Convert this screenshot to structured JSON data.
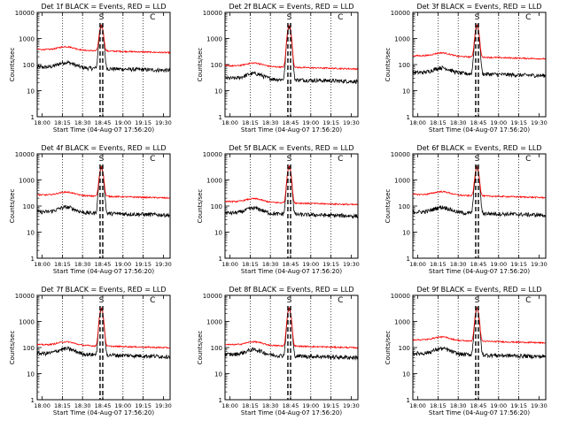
{
  "figure": {
    "xlabel": "Start Time (04-Aug-07 17:56:20)",
    "ylabel": "Counts/sec",
    "x_tick_labels": [
      "18:00",
      "18:15",
      "18:30",
      "18:45",
      "19:00",
      "19:15",
      "19:30"
    ],
    "y_tick_labels": [
      "1",
      "10",
      "100",
      "1000",
      "10000"
    ],
    "marker_labels": [
      "S",
      "C"
    ],
    "colors": {
      "events": "#000000",
      "lld": "#ff0000"
    }
  },
  "chart_data": [
    {
      "type": "line",
      "title": "Det 1f BLACK = Events, RED = LLD",
      "xlim": [
        "17:56:20",
        "19:35:00"
      ],
      "ylim": [
        1,
        10000
      ],
      "yscale": "log",
      "series": [
        {
          "name": "Events",
          "color": "#000000",
          "baseline": 80,
          "peak": 3000
        },
        {
          "name": "LLD",
          "color": "#ff0000",
          "baseline": 380,
          "peak": 3300
        }
      ],
      "vertical_lines": {
        "dotted": [
          "18:15",
          "18:30",
          "19:00",
          "19:15"
        ],
        "dashed": [
          "18:43",
          "18:45"
        ]
      }
    },
    {
      "type": "line",
      "title": "Det 2f BLACK = Events, RED = LLD",
      "xlim": [
        "17:56:20",
        "19:35:00"
      ],
      "ylim": [
        1,
        10000
      ],
      "yscale": "log",
      "series": [
        {
          "name": "Events",
          "color": "#000000",
          "baseline": 30,
          "peak": 3000
        },
        {
          "name": "LLD",
          "color": "#ff0000",
          "baseline": 90,
          "peak": 3300
        }
      ],
      "vertical_lines": {
        "dotted": [
          "18:15",
          "18:30",
          "19:00",
          "19:15"
        ],
        "dashed": [
          "18:43",
          "18:45"
        ]
      }
    },
    {
      "type": "line",
      "title": "Det 3f BLACK = Events, RED = LLD",
      "xlim": [
        "17:56:20",
        "19:35:00"
      ],
      "ylim": [
        1,
        10000
      ],
      "yscale": "log",
      "series": [
        {
          "name": "Events",
          "color": "#000000",
          "baseline": 50,
          "peak": 3000
        },
        {
          "name": "LLD",
          "color": "#ff0000",
          "baseline": 220,
          "peak": 3300
        }
      ],
      "vertical_lines": {
        "dotted": [
          "18:15",
          "18:30",
          "19:00",
          "19:15"
        ],
        "dashed": [
          "18:43",
          "18:45"
        ]
      }
    },
    {
      "type": "line",
      "title": "Det 4f BLACK = Events, RED = LLD",
      "xlim": [
        "17:56:20",
        "19:35:00"
      ],
      "ylim": [
        1,
        10000
      ],
      "yscale": "log",
      "series": [
        {
          "name": "Events",
          "color": "#000000",
          "baseline": 60,
          "peak": 3000
        },
        {
          "name": "LLD",
          "color": "#ff0000",
          "baseline": 270,
          "peak": 3300
        }
      ],
      "vertical_lines": {
        "dotted": [
          "18:15",
          "18:30",
          "19:00",
          "19:15"
        ],
        "dashed": [
          "18:43",
          "18:45"
        ]
      }
    },
    {
      "type": "line",
      "title": "Det 5f BLACK = Events, RED = LLD",
      "xlim": [
        "17:56:20",
        "19:35:00"
      ],
      "ylim": [
        1,
        10000
      ],
      "yscale": "log",
      "series": [
        {
          "name": "Events",
          "color": "#000000",
          "baseline": 55,
          "peak": 3000
        },
        {
          "name": "LLD",
          "color": "#ff0000",
          "baseline": 150,
          "peak": 3300
        }
      ],
      "vertical_lines": {
        "dotted": [
          "18:15",
          "18:30",
          "19:00",
          "19:15"
        ],
        "dashed": [
          "18:43",
          "18:45"
        ]
      }
    },
    {
      "type": "line",
      "title": "Det 6f BLACK = Events, RED = LLD",
      "xlim": [
        "17:56:20",
        "19:35:00"
      ],
      "ylim": [
        1,
        10000
      ],
      "yscale": "log",
      "series": [
        {
          "name": "Events",
          "color": "#000000",
          "baseline": 60,
          "peak": 3000
        },
        {
          "name": "LLD",
          "color": "#ff0000",
          "baseline": 280,
          "peak": 3300
        }
      ],
      "vertical_lines": {
        "dotted": [
          "18:15",
          "18:30",
          "19:00",
          "19:15"
        ],
        "dashed": [
          "18:43",
          "18:45"
        ]
      }
    },
    {
      "type": "line",
      "title": "Det 7f BLACK = Events, RED = LLD",
      "xlim": [
        "17:56:20",
        "19:35:00"
      ],
      "ylim": [
        1,
        10000
      ],
      "yscale": "log",
      "series": [
        {
          "name": "Events",
          "color": "#000000",
          "baseline": 60,
          "peak": 3000
        },
        {
          "name": "LLD",
          "color": "#ff0000",
          "baseline": 130,
          "peak": 3300
        }
      ],
      "vertical_lines": {
        "dotted": [
          "18:15",
          "18:30",
          "19:00",
          "19:15"
        ],
        "dashed": [
          "18:43",
          "18:45"
        ]
      }
    },
    {
      "type": "line",
      "title": "Det 8f BLACK = Events, RED = LLD",
      "xlim": [
        "17:56:20",
        "19:35:00"
      ],
      "ylim": [
        1,
        10000
      ],
      "yscale": "log",
      "series": [
        {
          "name": "Events",
          "color": "#000000",
          "baseline": 55,
          "peak": 3000
        },
        {
          "name": "LLD",
          "color": "#ff0000",
          "baseline": 130,
          "peak": 3300
        }
      ],
      "vertical_lines": {
        "dotted": [
          "18:15",
          "18:30",
          "19:00",
          "19:15"
        ],
        "dashed": [
          "18:43",
          "18:45"
        ]
      }
    },
    {
      "type": "line",
      "title": "Det 9f BLACK = Events, RED = LLD",
      "xlim": [
        "17:56:20",
        "19:35:00"
      ],
      "ylim": [
        1,
        10000
      ],
      "yscale": "log",
      "series": [
        {
          "name": "Events",
          "color": "#000000",
          "baseline": 60,
          "peak": 3000
        },
        {
          "name": "LLD",
          "color": "#ff0000",
          "baseline": 200,
          "peak": 3300
        }
      ],
      "vertical_lines": {
        "dotted": [
          "18:15",
          "18:30",
          "19:00",
          "19:15"
        ],
        "dashed": [
          "18:43",
          "18:45"
        ]
      }
    }
  ]
}
